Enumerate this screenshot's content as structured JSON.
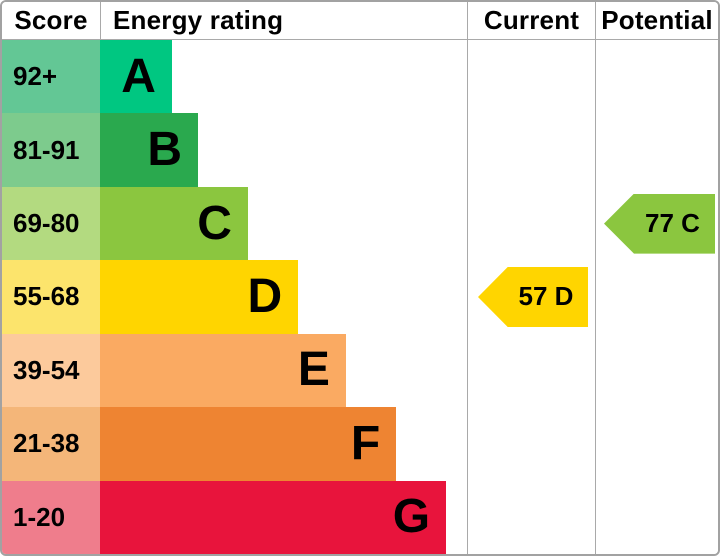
{
  "header": {
    "score": "Score",
    "energy_rating": "Energy rating",
    "current": "Current",
    "potential": "Potential"
  },
  "colors": {
    "outer_border": "#a2a2a2",
    "grid_line": "#a9a9a9",
    "text": "#000000"
  },
  "chart_data": {
    "type": "bar",
    "title": "Energy efficiency rating chart (EPC)",
    "orientation": "horizontal",
    "bands": [
      {
        "letter": "A",
        "score_range": "92+",
        "band_color": "#00c781",
        "score_color": "#63c795",
        "width_pct": 19.6
      },
      {
        "letter": "B",
        "score_range": "81-91",
        "band_color": "#2aa94e",
        "score_color": "#7dcb8d",
        "width_pct": 26.7
      },
      {
        "letter": "C",
        "score_range": "69-80",
        "band_color": "#8bc63f",
        "score_color": "#b3da80",
        "width_pct": 40.3
      },
      {
        "letter": "D",
        "score_range": "55-68",
        "band_color": "#ffd500",
        "score_color": "#fce46c",
        "width_pct": 54.0
      },
      {
        "letter": "E",
        "score_range": "39-54",
        "band_color": "#faaa62",
        "score_color": "#fcca9c",
        "width_pct": 67.0
      },
      {
        "letter": "F",
        "score_range": "21-38",
        "band_color": "#ee8432",
        "score_color": "#f4b679",
        "width_pct": 80.7
      },
      {
        "letter": "G",
        "score_range": "1-20",
        "band_color": "#e8143c",
        "score_color": "#ef7d8c",
        "width_pct": 94.3
      }
    ],
    "current": {
      "label": "57 D",
      "value": 57,
      "letter": "D",
      "color": "#ffd500"
    },
    "potential": {
      "label": "77 C",
      "value": 77,
      "letter": "C",
      "color": "#8bc63f"
    }
  }
}
